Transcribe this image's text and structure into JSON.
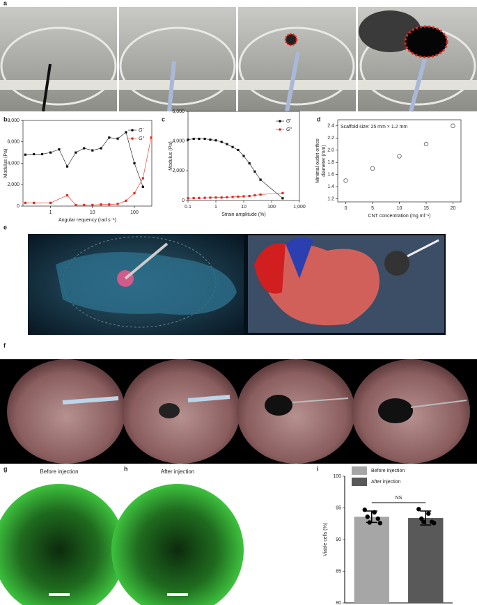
{
  "panel_labels": [
    "a",
    "b",
    "c",
    "d",
    "e",
    "f",
    "g",
    "h",
    "i"
  ],
  "images": {
    "g_title": "Before injection",
    "h_title": "After injection"
  },
  "chart_data": [
    {
      "type": "line",
      "xlog": true,
      "xlabel": "Angular requency (rad s⁻¹)",
      "ylabel": "Modulus (Pa)",
      "xlim": [
        0.22,
        260
      ],
      "xticks": [
        1,
        10,
        100
      ],
      "ylim": [
        0,
        8000
      ],
      "yticks": [
        0,
        {
          "value": 2000,
          "label": "2,000"
        },
        {
          "value": 4000,
          "label": "4,000"
        },
        {
          "value": 6000,
          "label": "6,000"
        },
        {
          "value": 8000,
          "label": "8,000"
        }
      ],
      "legend": "upper right",
      "series": [
        {
          "name": "G′",
          "color": "#111111",
          "x": [
            0.25,
            0.4,
            0.63,
            1,
            1.6,
            2.5,
            4,
            6.3,
            10,
            16,
            25,
            40,
            63,
            100,
            160
          ],
          "values": [
            4800,
            4850,
            4850,
            5000,
            5300,
            3700,
            5000,
            5400,
            5200,
            5400,
            6400,
            6300,
            6900,
            4000,
            1800
          ]
        },
        {
          "name": "G″",
          "color": "#e8261c",
          "x": [
            0.25,
            0.4,
            1,
            2.5,
            4,
            6.3,
            10,
            16,
            25,
            40,
            63,
            100,
            160,
            250
          ],
          "values": [
            300,
            300,
            300,
            1000,
            100,
            100,
            100,
            150,
            150,
            200,
            500,
            1200,
            2600,
            6400
          ]
        }
      ]
    },
    {
      "type": "line",
      "xlog": true,
      "xlabel": "Strain amplitude (%)",
      "ylabel": "Modulus (Pa)",
      "xlim": [
        0.1,
        1000
      ],
      "xticks": [
        0.1,
        1,
        10,
        100,
        {
          "value": 1000,
          "label": "1,000"
        }
      ],
      "ylim": [
        0,
        6000
      ],
      "yticks": [
        0,
        {
          "value": 2000,
          "label": "2,000"
        },
        {
          "value": 4000,
          "label": "4,000"
        },
        {
          "value": 6000,
          "label": "6,000"
        }
      ],
      "legend": "upper right",
      "series": [
        {
          "name": "G′",
          "color": "#111111",
          "x": [
            0.1,
            0.16,
            0.25,
            0.4,
            0.63,
            1,
            1.6,
            2.5,
            4,
            6.3,
            10,
            16,
            25,
            40,
            250
          ],
          "values": [
            4100,
            4150,
            4150,
            4150,
            4100,
            4050,
            3950,
            3800,
            3600,
            3400,
            3000,
            2500,
            1950,
            1400,
            150
          ]
        },
        {
          "name": "G″",
          "color": "#e8261c",
          "x": [
            0.1,
            0.16,
            0.25,
            0.4,
            0.63,
            1,
            1.6,
            2.5,
            4,
            6.3,
            10,
            16,
            25,
            40,
            250
          ],
          "values": [
            150,
            160,
            170,
            180,
            190,
            200,
            200,
            220,
            240,
            260,
            280,
            300,
            350,
            400,
            500
          ]
        }
      ]
    },
    {
      "type": "scatter",
      "xlabel": "CNT concentration (mg ml⁻¹)",
      "ylabel": [
        "Minimal outlet orifice",
        "diameter (mm)"
      ],
      "annotation": "Scaffold size: 25 mm × 1.2 mm",
      "xlim": [
        -1.5,
        21.5
      ],
      "xticks": [
        0,
        5,
        10,
        15,
        20
      ],
      "ylim": [
        1.15,
        2.5
      ],
      "yticks": [
        1.2,
        1.4,
        1.6,
        1.8,
        {
          "value": 2,
          "label": "2.0"
        },
        2.2,
        2.4
      ],
      "x": [
        0,
        5,
        10,
        15,
        20
      ],
      "values": [
        1.5,
        1.7,
        1.9,
        2.1,
        2.4
      ],
      "color": "#555555"
    },
    {
      "type": "bar",
      "ylabel": "Viable cells (%)",
      "annotation": "NS",
      "legend": "upper left",
      "ylim": [
        80,
        100
      ],
      "yticks": [
        80,
        85,
        90,
        95,
        100
      ],
      "series": [
        {
          "name": "Before injection",
          "color": "#a6a6a6",
          "values": [
            93.6
          ],
          "errors": [
            0.9
          ],
          "points": [
            94.7,
            94.3,
            93.6,
            93.3,
            92.7,
            92.6
          ]
        },
        {
          "name": "After injection",
          "color": "#595959",
          "values": [
            93.4
          ],
          "errors": [
            1.1
          ],
          "points": [
            94.8,
            94.1,
            93.3,
            92.8,
            92.8,
            92.6
          ]
        }
      ]
    }
  ]
}
